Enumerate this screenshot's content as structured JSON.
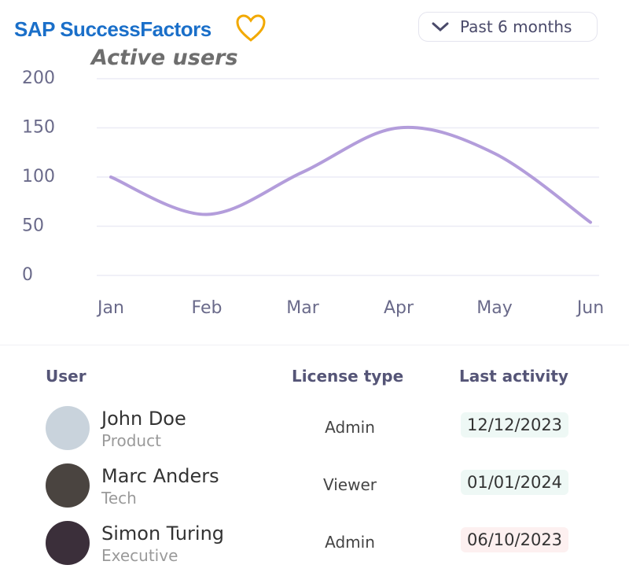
{
  "header": {
    "brand": "SAP SuccessFactors",
    "filter": "Past 6 months"
  },
  "chart_data": {
    "type": "line",
    "title": "Active users",
    "categories": [
      "Jan",
      "Feb",
      "Mar",
      "Apr",
      "May",
      "Jun"
    ],
    "series": [
      {
        "name": "Active users",
        "color": "#b39ddb",
        "values": [
          100,
          62,
          105,
          150,
          124,
          54
        ]
      }
    ],
    "ylim": [
      0,
      200
    ],
    "yticks": [
      0,
      50,
      100,
      150,
      200
    ],
    "grid": true
  },
  "table": {
    "columns": [
      "User",
      "License type",
      "Last activity"
    ],
    "rows": [
      {
        "name": "John Doe",
        "role": "Product",
        "license": "Admin",
        "date": "12/12/2023"
      },
      {
        "name": "Marc Anders",
        "role": "Tech",
        "license": "Viewer",
        "date": "01/01/2024"
      },
      {
        "name": "Simon Turing",
        "role": "Executive",
        "license": "Admin",
        "date": "06/10/2023"
      }
    ]
  }
}
